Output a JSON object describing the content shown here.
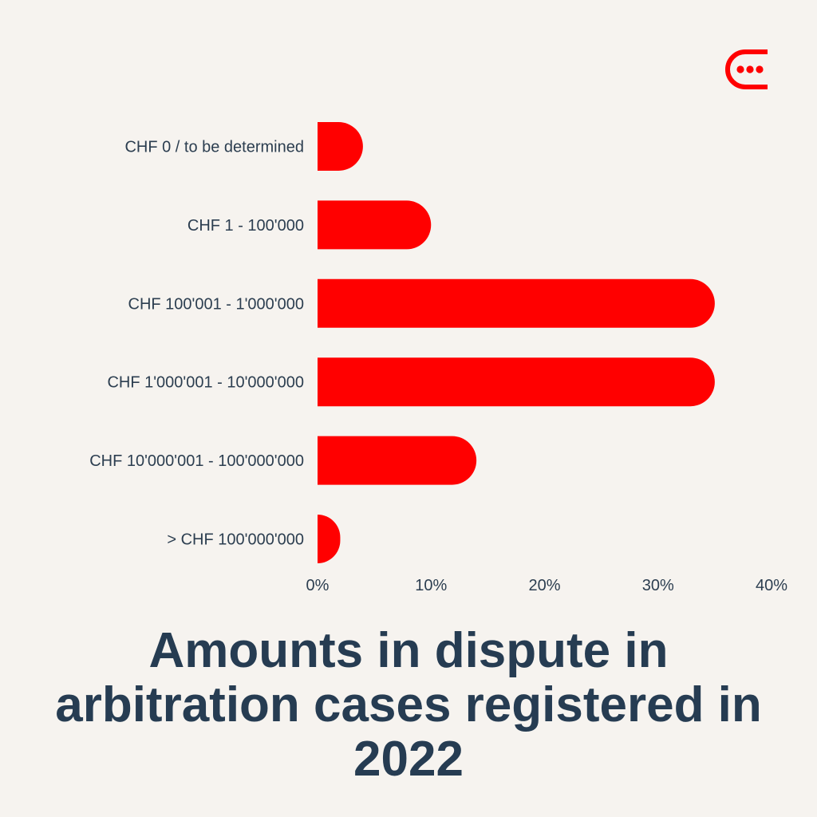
{
  "colors": {
    "background": "#f6f3ef",
    "bar": "#ff0000",
    "text": "#2c3e50",
    "title": "#263c52",
    "logo": "#ff0000"
  },
  "logo": {
    "icon": "speech-bubble-dots-icon"
  },
  "title": "Amounts in dispute in arbitration cases registered in 2022",
  "chart_data": {
    "type": "bar",
    "orientation": "horizontal",
    "categories": [
      "CHF 0 / to be determined",
      "CHF 1 - 100'000",
      "CHF 100'001 - 1'000'000",
      "CHF 1'000'001 - 10'000'000",
      "CHF 10'000'001 - 100'000'000",
      "> CHF 100'000'000"
    ],
    "values": [
      4,
      10,
      35,
      35,
      14,
      2
    ],
    "xlim": [
      0,
      40
    ],
    "xticks": [
      0,
      10,
      20,
      30,
      40
    ],
    "xtick_labels": [
      "0%",
      "10%",
      "20%",
      "30%",
      "40%"
    ],
    "grid": false,
    "title": "Amounts in dispute in arbitration cases registered in 2022",
    "xlabel": "",
    "ylabel": ""
  }
}
